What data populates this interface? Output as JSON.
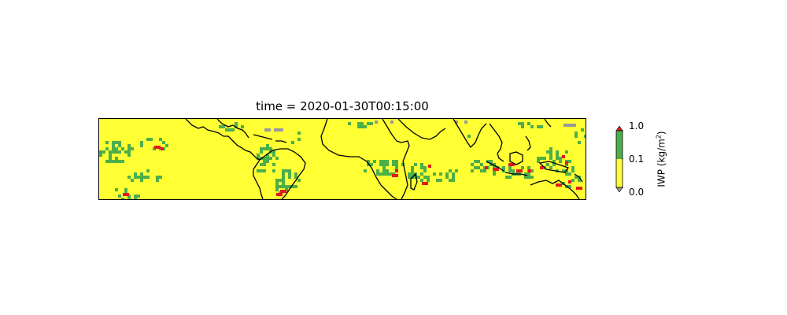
{
  "title": "time = 2020-01-30T00:15:00",
  "colorbar": {
    "label_prefix": "IWP (kg/m",
    "label_exp": "2",
    "label_suffix": ")",
    "ticks": [
      "0.0",
      "0.1",
      "1.0"
    ],
    "colors": {
      "low": "#ffff33",
      "mid": "#4daf4a",
      "high": "#e41a1c",
      "missing": "#999999"
    },
    "extend": "both"
  },
  "map": {
    "projection": "PlateCarree",
    "lon_range": [
      -180,
      180
    ],
    "lat_range": [
      -30,
      30
    ],
    "coastlines": true,
    "categories": [
      "yellow",
      "green",
      "red",
      "gray"
    ]
  }
}
